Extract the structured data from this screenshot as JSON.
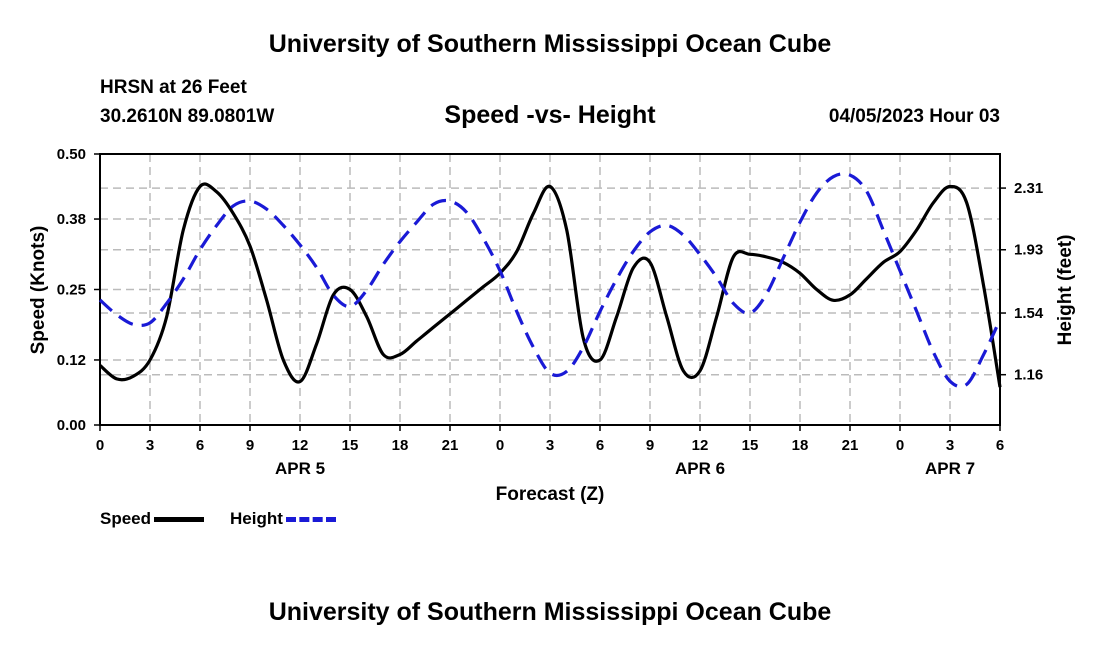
{
  "header": {
    "title": "University of Southern Mississippi Ocean Cube",
    "station": "HRSN at 26 Feet",
    "coords": "30.2610N  89.0801W",
    "chart_title": "Speed -vs- Height",
    "datetime": "04/05/2023 Hour 03"
  },
  "footer": {
    "title": "University of Southern Mississippi Ocean Cube"
  },
  "legend": {
    "speed": "Speed",
    "height": "Height"
  },
  "colors": {
    "speed": "#000000",
    "height": "#1a1ad6",
    "grid": "#bbbbbb"
  },
  "chart_data": {
    "type": "line",
    "title": "Speed -vs- Height",
    "xlabel": "Forecast (Z)",
    "ylabel": "Speed (Knots)",
    "y2label": "Height (feet)",
    "xlim": [
      0,
      54
    ],
    "ylim": [
      0,
      0.5
    ],
    "y2lim": [
      0.85,
      2.52
    ],
    "yticks": [
      "0.00",
      "0.12",
      "0.25",
      "0.38",
      "0.50"
    ],
    "y2ticks": [
      "1.16",
      "1.54",
      "1.93",
      "2.31"
    ],
    "xtick_labels": [
      "0",
      "3",
      "6",
      "9",
      "12",
      "15",
      "18",
      "21",
      "0",
      "3",
      "6",
      "9",
      "12",
      "15",
      "18",
      "21",
      "0",
      "3",
      "6"
    ],
    "day_labels": [
      {
        "label": "APR 5",
        "x": 12
      },
      {
        "label": "APR 6",
        "x": 36
      },
      {
        "label": "APR 7",
        "x": 51
      }
    ],
    "series": [
      {
        "name": "Speed",
        "axis": "left",
        "x": [
          0,
          1,
          2,
          3,
          4,
          5,
          6,
          7,
          8,
          9,
          10,
          11,
          12,
          13,
          14,
          15,
          16,
          17,
          18,
          19,
          20,
          21,
          22,
          23,
          24,
          25,
          26,
          27,
          28,
          29,
          30,
          31,
          32,
          33,
          34,
          35,
          36,
          37,
          38,
          39,
          40,
          41,
          42,
          43,
          44,
          45,
          46,
          47,
          48,
          49,
          50,
          51,
          52,
          53,
          54
        ],
        "values": [
          0.11,
          0.085,
          0.09,
          0.12,
          0.2,
          0.36,
          0.44,
          0.43,
          0.39,
          0.33,
          0.23,
          0.12,
          0.08,
          0.15,
          0.24,
          0.25,
          0.2,
          0.13,
          0.13,
          0.155,
          0.18,
          0.205,
          0.23,
          0.255,
          0.28,
          0.32,
          0.39,
          0.44,
          0.36,
          0.16,
          0.12,
          0.2,
          0.29,
          0.3,
          0.2,
          0.1,
          0.1,
          0.2,
          0.31,
          0.315,
          0.31,
          0.3,
          0.28,
          0.25,
          0.23,
          0.24,
          0.27,
          0.3,
          0.32,
          0.36,
          0.41,
          0.44,
          0.41,
          0.26,
          0.07
        ]
      },
      {
        "name": "Height",
        "axis": "right",
        "x": [
          0,
          1,
          2,
          3,
          4,
          5,
          6,
          7,
          8,
          9,
          10,
          11,
          12,
          13,
          14,
          15,
          16,
          17,
          18,
          19,
          20,
          21,
          22,
          23,
          24,
          25,
          26,
          27,
          28,
          29,
          30,
          31,
          32,
          33,
          34,
          35,
          36,
          37,
          38,
          39,
          40,
          41,
          42,
          43,
          44,
          45,
          46,
          47,
          48,
          49,
          50,
          51,
          52,
          53,
          54
        ],
        "values": [
          1.62,
          1.53,
          1.47,
          1.48,
          1.6,
          1.75,
          1.93,
          2.08,
          2.2,
          2.23,
          2.18,
          2.08,
          1.96,
          1.82,
          1.65,
          1.58,
          1.68,
          1.84,
          1.98,
          2.1,
          2.21,
          2.23,
          2.16,
          2.0,
          1.8,
          1.55,
          1.33,
          1.17,
          1.18,
          1.33,
          1.55,
          1.75,
          1.92,
          2.04,
          2.08,
          2.02,
          1.9,
          1.76,
          1.6,
          1.54,
          1.66,
          1.88,
          2.1,
          2.28,
          2.38,
          2.39,
          2.29,
          2.05,
          1.8,
          1.55,
          1.3,
          1.12,
          1.1,
          1.28,
          1.5
        ]
      }
    ]
  }
}
